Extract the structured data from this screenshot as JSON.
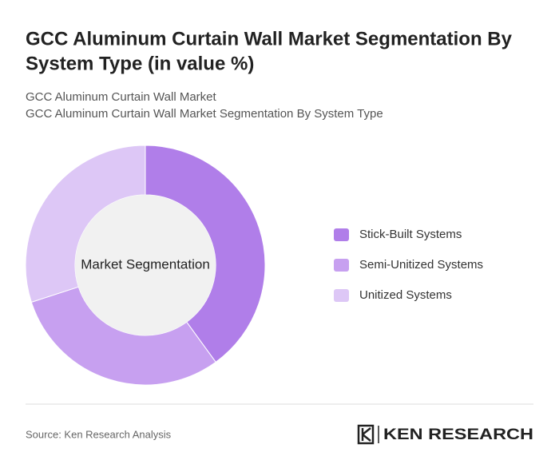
{
  "header": {
    "title_lines": [
      "GCC Aluminum Curtain Wall Market Segmentation By",
      "System Type (in value %)"
    ],
    "subtitle_lines": [
      "GCC Aluminum Curtain Wall Market",
      "GCC Aluminum Curtain Wall Market Segmentation By System Type"
    ]
  },
  "chart_data": {
    "type": "donut",
    "center_label": "Market Segmentation",
    "categories": [
      "Stick-Built Systems",
      "Semi-Unitized Systems",
      "Unitized Systems"
    ],
    "values": [
      40,
      30,
      30
    ],
    "colors": [
      "#b07ee9",
      "#c7a0f0",
      "#ddc7f6"
    ]
  },
  "footer": {
    "source": "Source: Ken Research Analysis",
    "logo": "KEN RESEARCH"
  }
}
